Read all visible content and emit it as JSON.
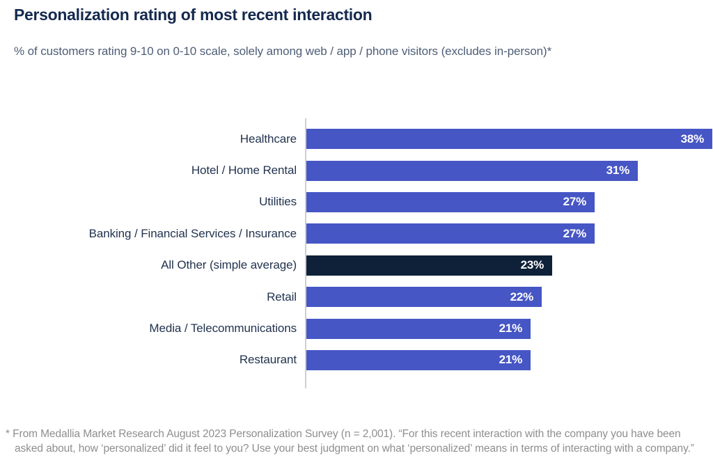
{
  "header": {
    "title": "Personalization rating of most recent interaction",
    "subtitle": "% of customers rating 9-10 on 0-10 scale, solely among web / app / phone visitors (excludes in-person)*"
  },
  "chart_data": {
    "type": "bar",
    "orientation": "horizontal",
    "categories": [
      "Healthcare",
      "Hotel / Home Rental",
      "Utilities",
      "Banking / Financial Services / Insurance",
      "All Other (simple average)",
      "Retail",
      "Media / Telecommunications",
      "Restaurant"
    ],
    "values": [
      38,
      31,
      27,
      27,
      23,
      22,
      21,
      21
    ],
    "value_labels": [
      "38%",
      "31%",
      "27%",
      "27%",
      "23%",
      "22%",
      "21%",
      "21%"
    ],
    "highlight_category": "All Other (simple average)",
    "xlim": [
      0,
      38
    ],
    "grid": false,
    "legend": "none",
    "colors": {
      "bar": "#4656C5",
      "highlight_bar": "#0E2138",
      "value_text": "#ffffff",
      "axis_line": "#cfcfcf",
      "category_text": "#22334E"
    }
  },
  "footnote": {
    "text": "* From Medallia Market Research August 2023 Personalization Survey (n = 2,001). “For this recent interaction with the company you have been asked about, how ‘personalized’ did it feel to you? Use your best judgment on what ‘personalized’ means in terms of interacting with a company.”"
  }
}
